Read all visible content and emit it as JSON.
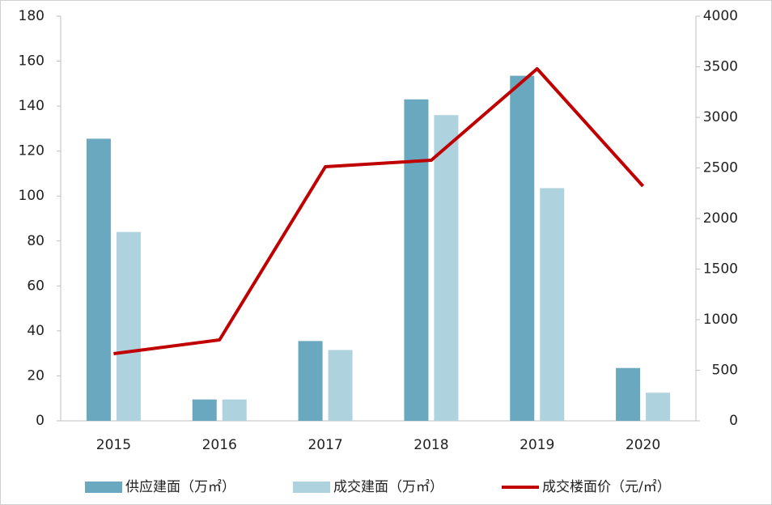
{
  "chart_data": {
    "type": "bar",
    "categories": [
      "2015",
      "2016",
      "2017",
      "2018",
      "2019",
      "2020"
    ],
    "series": [
      {
        "name": "供应建面（万㎡）",
        "color": "#6aa8bf",
        "type": "bar",
        "values": [
          125.5,
          9.5,
          35.5,
          143,
          153.5,
          23.5
        ]
      },
      {
        "name": "成交建面（万㎡）",
        "color": "#aed2de",
        "type": "bar",
        "values": [
          84,
          9.5,
          31.5,
          136,
          103.5,
          12.5
        ]
      },
      {
        "name": "成交楼面价（元/㎡）",
        "color": "#c00000",
        "type": "line",
        "axis": "y2",
        "values": [
          664,
          800,
          2512,
          2576,
          3480,
          2320
        ]
      }
    ],
    "ylim": [
      0,
      180
    ],
    "yticks": [
      0,
      20,
      40,
      60,
      80,
      100,
      120,
      140,
      160,
      180
    ],
    "y2lim": [
      0,
      4000
    ],
    "y2ticks": [
      0,
      500,
      1000,
      1500,
      2000,
      2500,
      3000,
      3500,
      4000
    ],
    "grid": false,
    "legend": "bottom"
  }
}
